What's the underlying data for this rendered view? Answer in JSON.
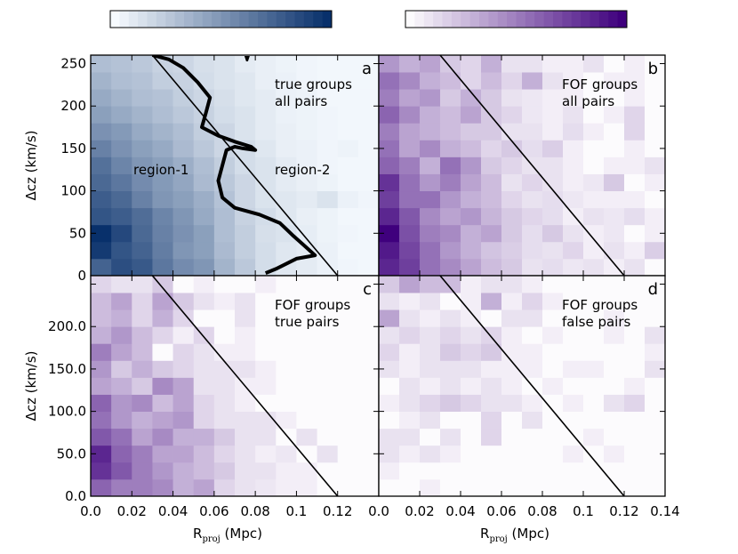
{
  "chart_data": [
    {
      "type": "heatmap",
      "panel": "a",
      "letter": "a",
      "annotation": [
        "true groups",
        "all pairs"
      ],
      "region_labels": [
        "region-1",
        "region-2"
      ],
      "colormap": "blues",
      "xlim": [
        0,
        0.14
      ],
      "ylim": [
        0,
        260
      ],
      "xlabel": "",
      "ylabel": "Δcz (km/s)",
      "xticks": [],
      "yticks": [
        "0",
        "50",
        "100",
        "150",
        "200",
        "250"
      ],
      "divider_line": [
        [
          0.03,
          260
        ],
        [
          0.12,
          0
        ]
      ],
      "contour": [
        [
          0.03,
          260
        ],
        [
          0.038,
          255
        ],
        [
          0.045,
          245
        ],
        [
          0.052,
          228
        ],
        [
          0.058,
          210
        ],
        [
          0.056,
          192
        ],
        [
          0.054,
          175
        ],
        [
          0.062,
          165
        ],
        [
          0.07,
          158
        ],
        [
          0.078,
          152
        ],
        [
          0.08,
          148
        ],
        [
          0.074,
          150
        ],
        [
          0.07,
          152
        ],
        [
          0.066,
          148
        ],
        [
          0.064,
          130
        ],
        [
          0.062,
          112
        ],
        [
          0.064,
          92
        ],
        [
          0.07,
          80
        ],
        [
          0.082,
          72
        ],
        [
          0.092,
          62
        ],
        [
          0.098,
          48
        ],
        [
          0.104,
          35
        ],
        [
          0.109,
          24
        ],
        [
          0.1,
          20
        ],
        [
          0.09,
          8
        ],
        [
          0.085,
          3
        ]
      ],
      "grid": [
        [
          0.75,
          0.85,
          0.8,
          0.65,
          0.55,
          0.5,
          0.35,
          0.25,
          0.15,
          0.1,
          0.08,
          0.05,
          0.03,
          0.02
        ],
        [
          0.95,
          0.82,
          0.75,
          0.62,
          0.5,
          0.45,
          0.32,
          0.22,
          0.15,
          0.1,
          0.08,
          0.05,
          0.02,
          0.02
        ],
        [
          1.0,
          0.88,
          0.72,
          0.6,
          0.52,
          0.45,
          0.3,
          0.22,
          0.14,
          0.12,
          0.07,
          0.04,
          0.03,
          0.02
        ],
        [
          0.82,
          0.78,
          0.7,
          0.58,
          0.5,
          0.4,
          0.3,
          0.2,
          0.15,
          0.1,
          0.06,
          0.04,
          0.02,
          0.02
        ],
        [
          0.78,
          0.72,
          0.6,
          0.5,
          0.45,
          0.38,
          0.28,
          0.18,
          0.12,
          0.1,
          0.08,
          0.12,
          0.05,
          0.03
        ],
        [
          0.72,
          0.65,
          0.55,
          0.48,
          0.42,
          0.32,
          0.25,
          0.18,
          0.12,
          0.08,
          0.06,
          0.04,
          0.02,
          0.02
        ],
        [
          0.68,
          0.58,
          0.5,
          0.45,
          0.38,
          0.3,
          0.22,
          0.15,
          0.12,
          0.08,
          0.05,
          0.03,
          0.02,
          0.02
        ],
        [
          0.6,
          0.52,
          0.45,
          0.4,
          0.32,
          0.25,
          0.18,
          0.15,
          0.1,
          0.06,
          0.05,
          0.03,
          0.04,
          0.02
        ],
        [
          0.52,
          0.48,
          0.4,
          0.35,
          0.3,
          0.22,
          0.18,
          0.12,
          0.08,
          0.06,
          0.04,
          0.03,
          0.02,
          0.02
        ],
        [
          0.45,
          0.4,
          0.35,
          0.3,
          0.25,
          0.2,
          0.15,
          0.12,
          0.08,
          0.05,
          0.04,
          0.03,
          0.02,
          0.02
        ],
        [
          0.4,
          0.35,
          0.3,
          0.28,
          0.22,
          0.18,
          0.14,
          0.1,
          0.08,
          0.05,
          0.04,
          0.02,
          0.02,
          0.02
        ],
        [
          0.35,
          0.3,
          0.28,
          0.22,
          0.2,
          0.15,
          0.12,
          0.1,
          0.06,
          0.05,
          0.03,
          0.02,
          0.02,
          0.02
        ],
        [
          0.3,
          0.28,
          0.25,
          0.2,
          0.18,
          0.14,
          0.12,
          0.08,
          0.06,
          0.04,
          0.03,
          0.02,
          0.02,
          0.02
        ]
      ]
    },
    {
      "type": "heatmap",
      "panel": "b",
      "letter": "b",
      "annotation": [
        "FOF groups",
        "all pairs"
      ],
      "colormap": "purples",
      "xlim": [
        0,
        0.14
      ],
      "ylim": [
        0,
        260
      ],
      "xlabel": "",
      "ylabel": "",
      "xticks": [],
      "yticks": [],
      "divider_line": [
        [
          0.03,
          260
        ],
        [
          0.12,
          0
        ]
      ],
      "grid": [
        [
          0.85,
          0.75,
          0.55,
          0.45,
          0.35,
          0.25,
          0.2,
          0.1,
          0.12,
          0.08,
          0.1,
          0.05,
          0.1,
          0.0
        ],
        [
          0.9,
          0.72,
          0.55,
          0.4,
          0.3,
          0.22,
          0.18,
          0.12,
          0.1,
          0.15,
          0.05,
          0.1,
          0.05,
          0.18
        ],
        [
          1.0,
          0.68,
          0.5,
          0.45,
          0.3,
          0.35,
          0.2,
          0.12,
          0.2,
          0.1,
          0.05,
          0.08,
          0.0,
          0.05
        ],
        [
          0.85,
          0.65,
          0.45,
          0.35,
          0.4,
          0.28,
          0.2,
          0.15,
          0.12,
          0.05,
          0.1,
          0.08,
          0.12,
          0.05
        ],
        [
          0.75,
          0.55,
          0.55,
          0.4,
          0.3,
          0.25,
          0.15,
          0.1,
          0.12,
          0.08,
          0.05,
          0.05,
          0.05,
          0.0
        ],
        [
          0.8,
          0.55,
          0.4,
          0.5,
          0.35,
          0.25,
          0.1,
          0.15,
          0.1,
          0.05,
          0.08,
          0.2,
          0.0,
          0.05
        ],
        [
          0.6,
          0.5,
          0.3,
          0.55,
          0.4,
          0.2,
          0.15,
          0.1,
          0.1,
          0.05,
          0.0,
          0.05,
          0.05,
          0.1
        ],
        [
          0.55,
          0.35,
          0.45,
          0.3,
          0.25,
          0.15,
          0.2,
          0.12,
          0.18,
          0.05,
          0.0,
          0.0,
          0.05,
          0.0
        ],
        [
          0.5,
          0.35,
          0.3,
          0.25,
          0.2,
          0.2,
          0.1,
          0.1,
          0.05,
          0.12,
          0.05,
          0.0,
          0.15,
          0.0
        ],
        [
          0.6,
          0.45,
          0.3,
          0.25,
          0.35,
          0.2,
          0.15,
          0.08,
          0.05,
          0.1,
          0.0,
          0.05,
          0.15,
          0.0
        ],
        [
          0.5,
          0.35,
          0.4,
          0.2,
          0.3,
          0.2,
          0.1,
          0.08,
          0.05,
          0.05,
          0.0,
          0.0,
          0.05,
          0.0
        ],
        [
          0.55,
          0.45,
          0.3,
          0.25,
          0.15,
          0.25,
          0.15,
          0.3,
          0.1,
          0.05,
          0.0,
          0.05,
          0.05,
          0.0
        ],
        [
          0.4,
          0.3,
          0.35,
          0.2,
          0.15,
          0.3,
          0.1,
          0.1,
          0.05,
          0.05,
          0.1,
          0.0,
          0.05,
          0.0
        ]
      ]
    },
    {
      "type": "heatmap",
      "panel": "c",
      "letter": "c",
      "annotation": [
        "FOF groups",
        "true pairs"
      ],
      "colormap": "purples",
      "xlim": [
        0,
        0.14
      ],
      "ylim": [
        0,
        260
      ],
      "xlabel": "R_proj (Mpc)",
      "ylabel": "Δcz (km/s)",
      "xticks": [
        "0.0",
        "0.02",
        "0.04",
        "0.06",
        "0.08",
        "0.1",
        "0.12"
      ],
      "yticks": [
        "0.0",
        "50.0",
        "100.0",
        "150.0",
        "200.0"
      ],
      "divider_line": [
        [
          0.03,
          260
        ],
        [
          0.12,
          0
        ]
      ],
      "grid": [
        [
          0.6,
          0.5,
          0.5,
          0.45,
          0.3,
          0.35,
          0.15,
          0.1,
          0.08,
          0.05,
          0.05,
          0.0,
          0.0,
          0.0
        ],
        [
          0.8,
          0.65,
          0.5,
          0.4,
          0.3,
          0.25,
          0.2,
          0.1,
          0.1,
          0.05,
          0.05,
          0.0,
          0.0,
          0.0
        ],
        [
          0.85,
          0.6,
          0.5,
          0.35,
          0.35,
          0.25,
          0.15,
          0.1,
          0.05,
          0.08,
          0.0,
          0.1,
          0.0,
          0.0
        ],
        [
          0.65,
          0.55,
          0.35,
          0.45,
          0.3,
          0.3,
          0.2,
          0.1,
          0.1,
          0.0,
          0.1,
          0.0,
          0.0,
          0.0
        ],
        [
          0.55,
          0.4,
          0.3,
          0.35,
          0.4,
          0.15,
          0.1,
          0.1,
          0.1,
          0.05,
          0.0,
          0.0,
          0.0,
          0.0
        ],
        [
          0.6,
          0.4,
          0.45,
          0.25,
          0.35,
          0.15,
          0.1,
          0.05,
          0.0,
          0.0,
          0.0,
          0.0,
          0.0,
          0.0
        ],
        [
          0.35,
          0.3,
          0.2,
          0.45,
          0.35,
          0.1,
          0.1,
          0.05,
          0.05,
          0.0,
          0.0,
          0.0,
          0.0,
          0.0
        ],
        [
          0.4,
          0.2,
          0.3,
          0.2,
          0.15,
          0.1,
          0.1,
          0.1,
          0.05,
          0.0,
          0.0,
          0.0,
          0.0,
          0.0
        ],
        [
          0.5,
          0.35,
          0.25,
          0.0,
          0.15,
          0.1,
          0.05,
          0.05,
          0.0,
          0.0,
          0.0,
          0.0,
          0.0,
          0.0
        ],
        [
          0.3,
          0.4,
          0.25,
          0.15,
          0.05,
          0.15,
          0.0,
          0.05,
          0.0,
          0.0,
          0.0,
          0.0,
          0.0,
          0.0
        ],
        [
          0.25,
          0.3,
          0.15,
          0.3,
          0.15,
          0.0,
          0.0,
          0.1,
          0.0,
          0.0,
          0.0,
          0.0,
          0.0,
          0.0
        ],
        [
          0.25,
          0.35,
          0.15,
          0.35,
          0.2,
          0.1,
          0.05,
          0.1,
          0.0,
          0.0,
          0.0,
          0.0,
          0.0,
          0.0
        ],
        [
          0.15,
          0.1,
          0.1,
          0.2,
          0.0,
          0.05,
          0.0,
          0.0,
          0.05,
          0.0,
          0.0,
          0.0,
          0.0,
          0.0
        ]
      ]
    },
    {
      "type": "heatmap",
      "panel": "d",
      "letter": "d",
      "annotation": [
        "FOF groups",
        "false pairs"
      ],
      "colormap": "purples",
      "xlim": [
        0,
        0.14
      ],
      "ylim": [
        0,
        260
      ],
      "xlabel": "R_proj (Mpc)",
      "ylabel": "",
      "xticks": [
        "0.0",
        "0.02",
        "0.04",
        "0.06",
        "0.08",
        "0.1",
        "0.12",
        "0.14"
      ],
      "yticks": [],
      "divider_line": [
        [
          0.03,
          260
        ],
        [
          0.12,
          0
        ]
      ],
      "grid": [
        [
          0.0,
          0.0,
          0.05,
          0.0,
          0.0,
          0.0,
          0.0,
          0.0,
          0.0,
          0.0,
          0.0,
          0.0,
          0.0,
          0.0
        ],
        [
          0.05,
          0.0,
          0.0,
          0.0,
          0.0,
          0.0,
          0.0,
          0.0,
          0.0,
          0.0,
          0.0,
          0.0,
          0.0,
          0.0
        ],
        [
          0.1,
          0.05,
          0.1,
          0.05,
          0.0,
          0.0,
          0.0,
          0.0,
          0.0,
          0.05,
          0.0,
          0.05,
          0.0,
          0.0
        ],
        [
          0.1,
          0.1,
          0.0,
          0.1,
          0.0,
          0.15,
          0.0,
          0.0,
          0.0,
          0.0,
          0.05,
          0.0,
          0.0,
          0.0
        ],
        [
          0.0,
          0.05,
          0.1,
          0.0,
          0.0,
          0.15,
          0.0,
          0.1,
          0.0,
          0.0,
          0.0,
          0.0,
          0.0,
          0.0
        ],
        [
          0.05,
          0.1,
          0.15,
          0.2,
          0.15,
          0.1,
          0.1,
          0.05,
          0.0,
          0.05,
          0.0,
          0.1,
          0.15,
          0.0
        ],
        [
          0.0,
          0.1,
          0.05,
          0.1,
          0.05,
          0.1,
          0.05,
          0.0,
          0.05,
          0.0,
          0.0,
          0.0,
          0.05,
          0.0
        ],
        [
          0.1,
          0.05,
          0.1,
          0.1,
          0.1,
          0.05,
          0.05,
          0.05,
          0.0,
          0.05,
          0.05,
          0.0,
          0.0,
          0.1
        ],
        [
          0.15,
          0.05,
          0.1,
          0.2,
          0.15,
          0.2,
          0.05,
          0.05,
          0.0,
          0.0,
          0.0,
          0.0,
          0.0,
          0.05
        ],
        [
          0.1,
          0.15,
          0.1,
          0.15,
          0.1,
          0.15,
          0.05,
          0.0,
          0.05,
          0.0,
          0.0,
          0.05,
          0.0,
          0.1
        ],
        [
          0.35,
          0.1,
          0.05,
          0.1,
          0.05,
          0.0,
          0.1,
          0.1,
          0.0,
          0.0,
          0.0,
          0.05,
          0.0,
          0.0
        ],
        [
          0.1,
          0.05,
          0.1,
          0.0,
          0.05,
          0.3,
          0.05,
          0.15,
          0.05,
          0.0,
          0.0,
          0.0,
          0.0,
          0.0
        ],
        [
          0.2,
          0.35,
          0.25,
          0.25,
          0.05,
          0.1,
          0.1,
          0.05,
          0.0,
          0.0,
          0.0,
          0.0,
          0.0,
          0.0
        ]
      ]
    }
  ],
  "colorbars": [
    {
      "name": "colorbar-blues",
      "colormap": "blues"
    },
    {
      "name": "colorbar-purples",
      "colormap": "purples"
    }
  ],
  "colormaps": {
    "blues": {
      "low": "#f7fbff",
      "high": "#08306b"
    },
    "purples": {
      "low": "#fcfbfd",
      "high": "#3f007d"
    }
  }
}
